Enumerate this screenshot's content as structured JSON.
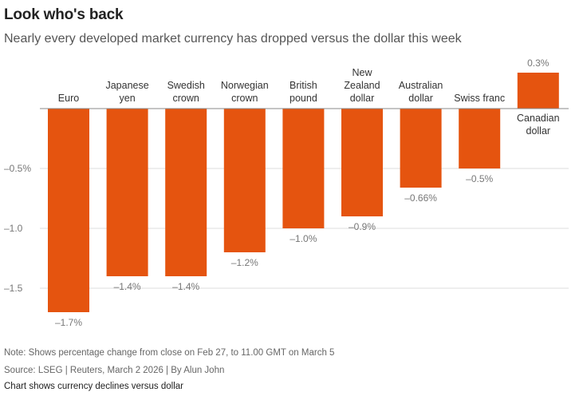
{
  "header": {
    "title": "Look who's back",
    "subtitle": "Nearly every developed market currency has dropped versus the dollar this week"
  },
  "footer": {
    "note": "Note: Shows percentage change from close on Feb 27, to 11.00 GMT on March 5",
    "source": "Source: LSEG | Reuters, March 2 2026 | By Alun John",
    "caption": "Chart shows currency declines versus dollar"
  },
  "colors": {
    "bar": "#e5540f",
    "grid": "#dddddd",
    "axis": "#888888",
    "tick_label": "#777777",
    "text": "#333333"
  },
  "chart_data": {
    "type": "bar",
    "categories": [
      [
        "Euro"
      ],
      [
        "Japanese",
        "yen"
      ],
      [
        "Swedish",
        "crown"
      ],
      [
        "Norwegian",
        "crown"
      ],
      [
        "British",
        "pound"
      ],
      [
        "New",
        "Zealand",
        "dollar"
      ],
      [
        "Australian",
        "dollar"
      ],
      [
        "Swiss franc"
      ],
      [
        "Canadian",
        "dollar"
      ]
    ],
    "values": [
      -1.7,
      -1.4,
      -1.4,
      -1.2,
      -1.0,
      -0.9,
      -0.66,
      -0.5,
      0.3
    ],
    "value_labels": [
      "–1.7%",
      "–1.4%",
      "–1.4%",
      "–1.2%",
      "–1.0%",
      "–0.9%",
      "–0.66%",
      "–0.5%",
      "0.3%"
    ],
    "y_ticks": [
      -0.5,
      -1.0,
      -1.5
    ],
    "y_tick_labels": [
      "–0.5%",
      "–1.0",
      "–1.5"
    ],
    "ylim": [
      -1.74,
      0.34
    ],
    "grid": true,
    "title": "Look who's back",
    "xlabel": "",
    "ylabel": ""
  }
}
